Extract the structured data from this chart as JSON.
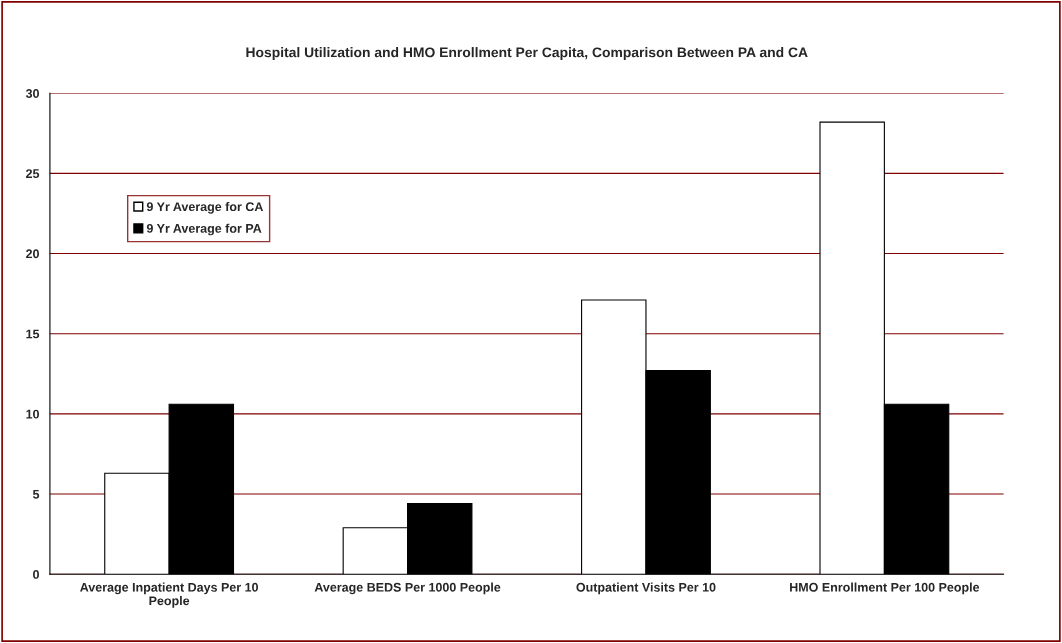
{
  "chart_data": {
    "type": "bar",
    "title": "Hospital Utilization and HMO Enrollment Per Capita, Comparison Between PA and CA",
    "categories": [
      "Average Inpatient Days Per 10 People",
      "Average BEDS Per 1000 People",
      "Outpatient Visits Per 10",
      "HMO Enrollment Per 100 People"
    ],
    "series": [
      {
        "name": "9 Yr Average for CA",
        "color": "#ffffff",
        "values": [
          6.3,
          2.9,
          17.1,
          28.2
        ]
      },
      {
        "name": "9 Yr Average for PA",
        "color": "#000000",
        "values": [
          10.6,
          4.4,
          12.7,
          10.6
        ]
      }
    ],
    "ylim": [
      0,
      30
    ],
    "yticks": [
      0,
      5,
      10,
      15,
      20,
      25,
      30
    ],
    "grid": "y",
    "legend": "top left"
  }
}
